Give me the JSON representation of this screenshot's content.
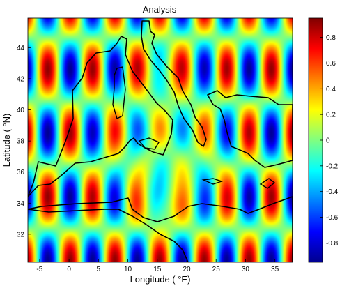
{
  "chart_data": {
    "type": "heatmap",
    "title": "Analysis",
    "xlabel": "Longitude ( °E)",
    "ylabel": "Latitude ( °N)",
    "xlim": [
      -7,
      38
    ],
    "ylim": [
      30.2,
      45.9
    ],
    "x_ticks": [
      -5,
      0,
      5,
      10,
      15,
      20,
      25,
      30,
      35
    ],
    "y_ticks": [
      32,
      34,
      36,
      38,
      40,
      42,
      44
    ],
    "colorbar": {
      "range": [
        -0.95,
        0.95
      ],
      "ticks": [
        -0.8,
        -0.6,
        -0.4,
        -0.2,
        0,
        0.2,
        0.4,
        0.6,
        0.8
      ],
      "colormap": "jet"
    },
    "grid": false,
    "overlay": "Mediterranean coastline"
  }
}
